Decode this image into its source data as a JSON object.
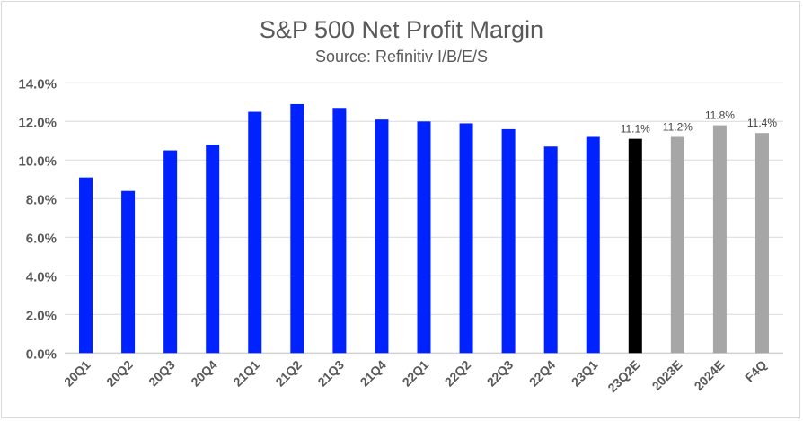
{
  "chart_data": {
    "type": "bar",
    "title": "S&P 500 Net Profit Margin",
    "subtitle": "Source: Refinitiv I/B/E/S",
    "xlabel": "",
    "ylabel": "",
    "ylim": [
      0,
      14
    ],
    "yticks": [
      "0.0%",
      "2.0%",
      "4.0%",
      "6.0%",
      "8.0%",
      "10.0%",
      "12.0%",
      "14.0%"
    ],
    "grid": true,
    "categories": [
      "20Q1",
      "20Q2",
      "20Q3",
      "20Q4",
      "21Q1",
      "21Q2",
      "21Q3",
      "21Q4",
      "22Q1",
      "22Q2",
      "22Q3",
      "22Q4",
      "23Q1",
      "23Q2E",
      "2023E",
      "2024E",
      "F4Q"
    ],
    "values": [
      9.1,
      8.4,
      10.5,
      10.8,
      12.5,
      12.9,
      12.7,
      12.1,
      12.0,
      11.9,
      11.6,
      10.7,
      11.2,
      11.1,
      11.2,
      11.8,
      11.4
    ],
    "data_labels": [
      "",
      "",
      "",
      "",
      "",
      "",
      "",
      "",
      "",
      "",
      "",
      "",
      "",
      "11.1%",
      "11.2%",
      "11.8%",
      "11.4%"
    ],
    "colors": [
      "#0022ff",
      "#0022ff",
      "#0022ff",
      "#0022ff",
      "#0022ff",
      "#0022ff",
      "#0022ff",
      "#0022ff",
      "#0022ff",
      "#0022ff",
      "#0022ff",
      "#0022ff",
      "#0022ff",
      "#000000",
      "#a6a6a6",
      "#a6a6a6",
      "#a6a6a6"
    ]
  }
}
